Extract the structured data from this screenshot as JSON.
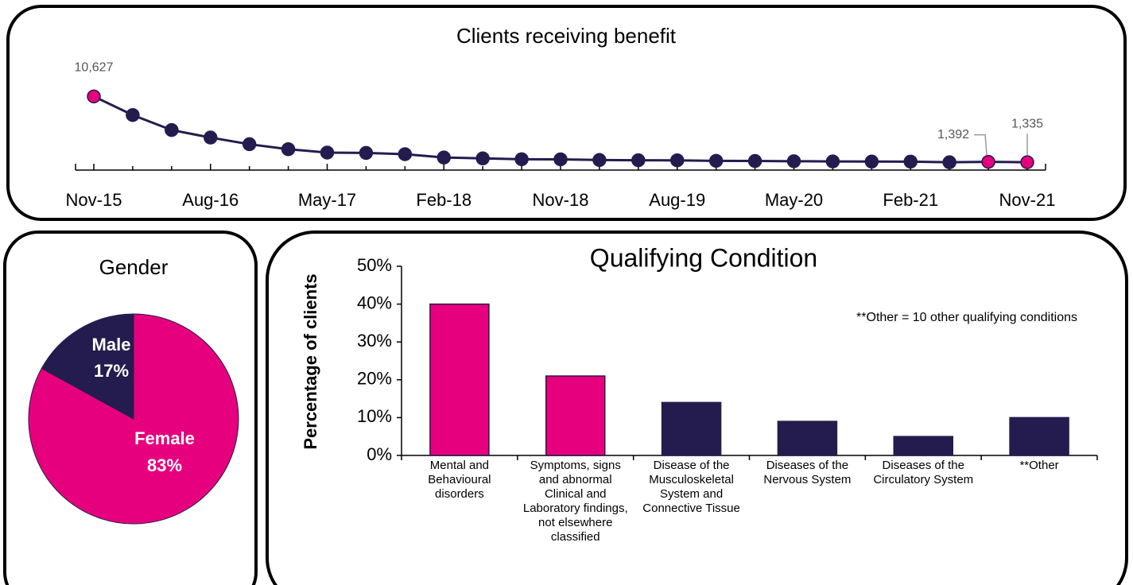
{
  "chart_data": [
    {
      "type": "line",
      "title": "Clients receiving benefit",
      "categories": [
        "Nov-15",
        null,
        null,
        "Aug-16",
        null,
        null,
        "May-17",
        null,
        null,
        "Feb-18",
        null,
        null,
        "Nov-18",
        null,
        null,
        "Aug-19",
        null,
        null,
        "May-20",
        null,
        null,
        "Feb-21",
        null,
        null,
        "Nov-21"
      ],
      "values": [
        10627,
        8000,
        5880,
        4820,
        3880,
        3175,
        2700,
        2650,
        2470,
        2000,
        1880,
        1760,
        1740,
        1650,
        1620,
        1600,
        1530,
        1510,
        1480,
        1450,
        1430,
        1420,
        1330,
        1392,
        1335
      ],
      "value_labels": [
        "10,627",
        null,
        null,
        null,
        null,
        null,
        null,
        null,
        null,
        null,
        null,
        null,
        null,
        null,
        null,
        null,
        null,
        null,
        null,
        null,
        null,
        null,
        null,
        "1,392",
        "1,335"
      ],
      "color": "#241c4f",
      "marker_colors": [
        "#e6007e",
        "#241c4f",
        "#241c4f",
        "#241c4f",
        "#241c4f",
        "#241c4f",
        "#241c4f",
        "#241c4f",
        "#241c4f",
        "#241c4f",
        "#241c4f",
        "#241c4f",
        "#241c4f",
        "#241c4f",
        "#241c4f",
        "#241c4f",
        "#241c4f",
        "#241c4f",
        "#241c4f",
        "#241c4f",
        "#241c4f",
        "#241c4f",
        "#241c4f",
        "#e6007e",
        "#e6007e"
      ],
      "ylim": [
        0,
        11000
      ]
    },
    {
      "type": "pie",
      "title": "Gender",
      "categories": [
        "Male",
        "Female"
      ],
      "values": [
        17,
        83
      ],
      "value_labels": [
        "17%",
        "83%"
      ],
      "colors": [
        "#241c4f",
        "#e6007e"
      ]
    },
    {
      "type": "bar",
      "title": "Qualifying Condition",
      "ylabel": "Percentage of clients",
      "annotation": "**Other = 10 other qualifying conditions",
      "categories": [
        "Mental and Behavioural disorders",
        "Symptoms, signs and abnormal Clinical and Laboratory findings, not elsewhere classified",
        "Disease of the Musculoskeletal System and Connective Tissue",
        "Diseases of the Nervous System",
        "Diseases of the Circulatory System",
        "**Other"
      ],
      "values": [
        40,
        21,
        14,
        9,
        5,
        10
      ],
      "colors": [
        "#e6007e",
        "#e6007e",
        "#241c4f",
        "#241c4f",
        "#241c4f",
        "#241c4f"
      ],
      "ylim": [
        0,
        50
      ],
      "yticks": [
        {
          "value": 0,
          "label": "0%"
        },
        {
          "value": 10,
          "label": "10%"
        },
        {
          "value": 20,
          "label": "20%"
        },
        {
          "value": 30,
          "label": "30%"
        },
        {
          "value": 40,
          "label": "40%"
        },
        {
          "value": 50,
          "label": "50%"
        }
      ]
    }
  ]
}
